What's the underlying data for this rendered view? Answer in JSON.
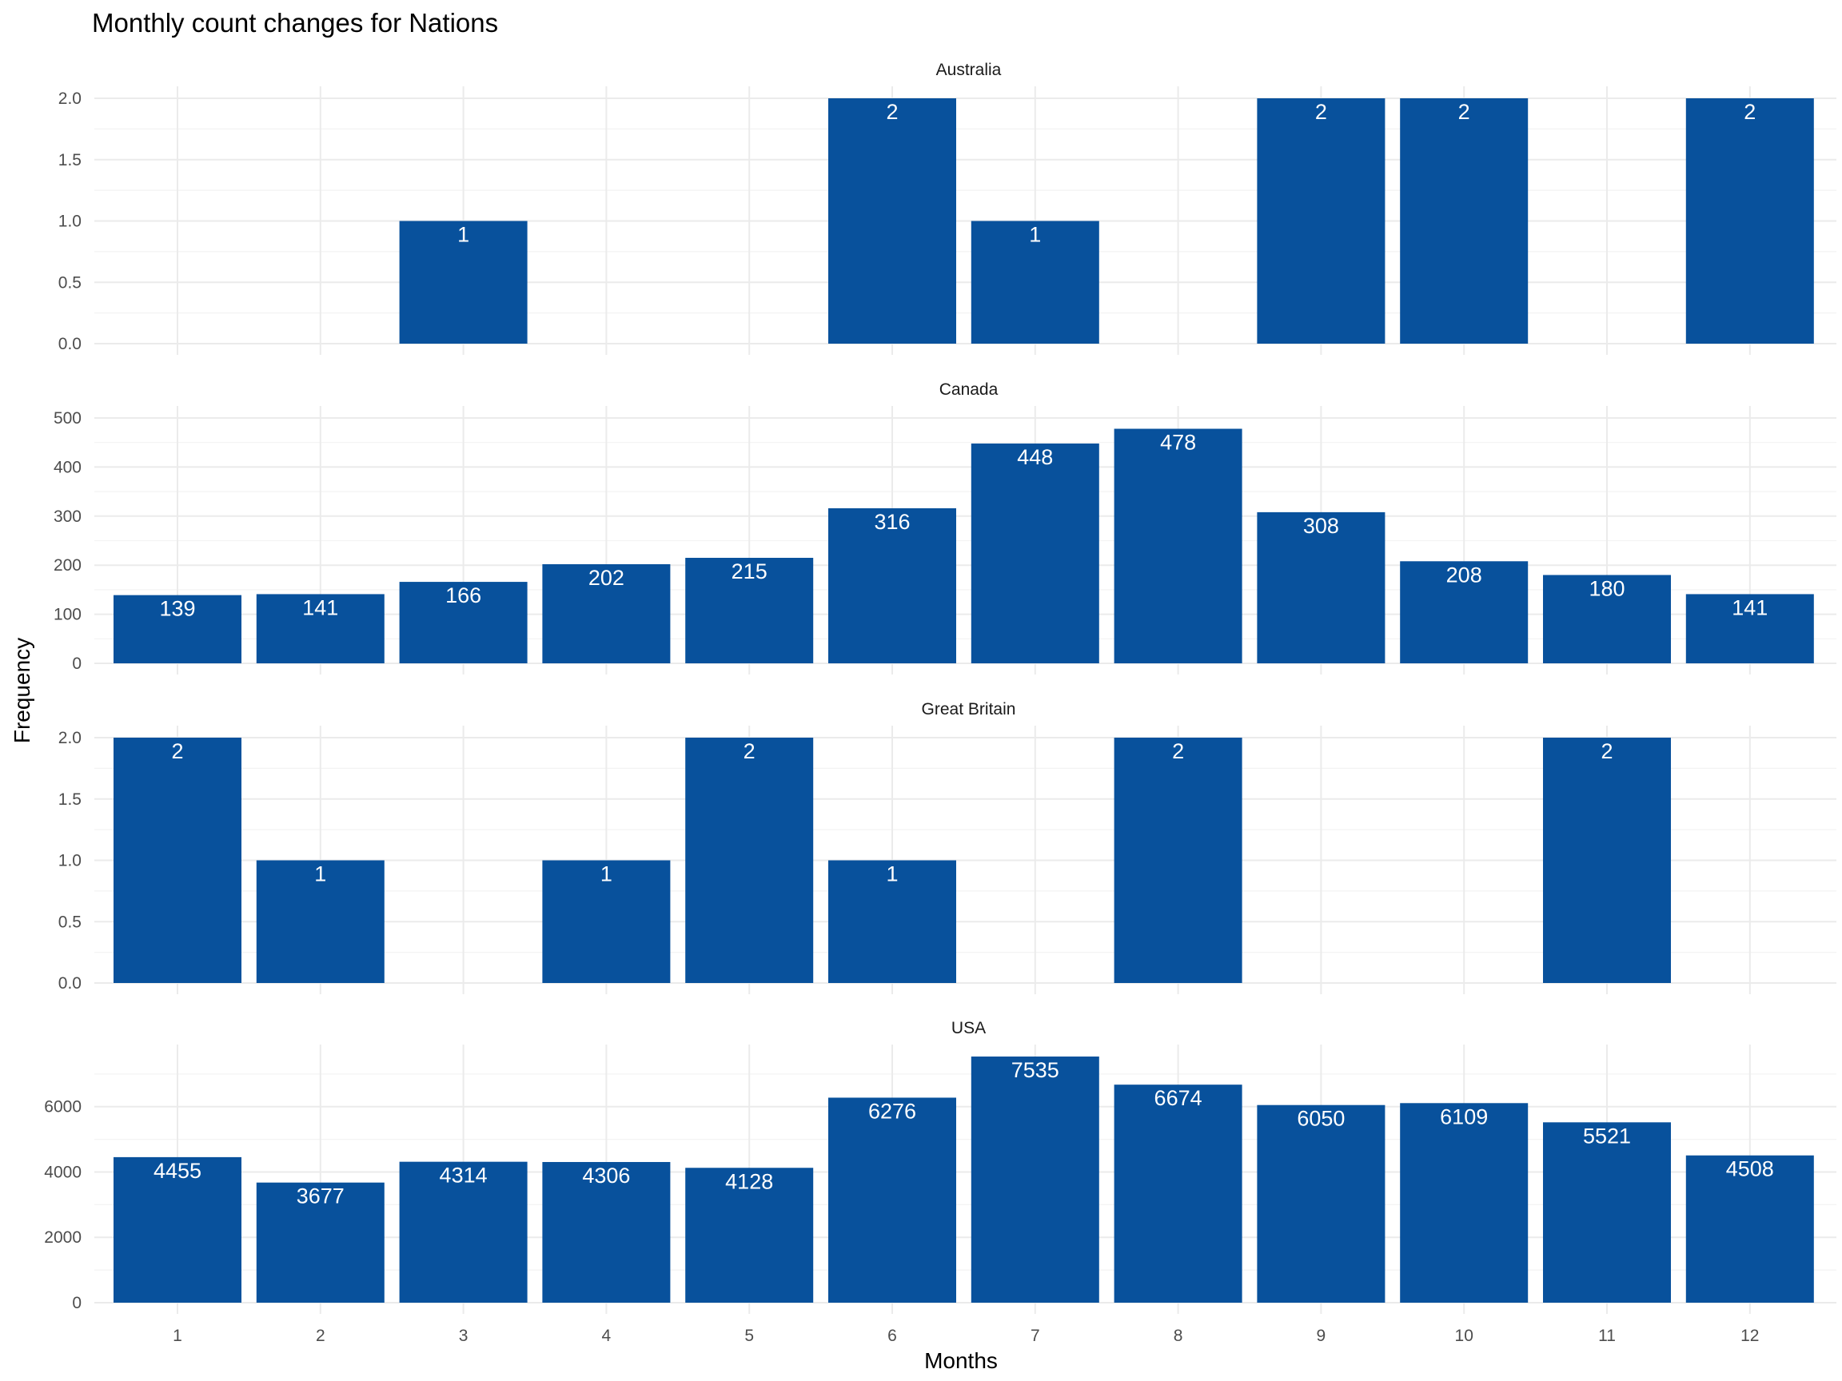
{
  "chart_data": {
    "type": "bar",
    "title": "Monthly count changes for Nations",
    "xlabel": "Months",
    "ylabel": "Frequency",
    "categories": [
      "1",
      "2",
      "3",
      "4",
      "5",
      "6",
      "7",
      "8",
      "9",
      "10",
      "11",
      "12"
    ],
    "bar_color": "#08519c",
    "label_color": "#ffffff",
    "grid": true,
    "facets": [
      {
        "name": "Australia",
        "values": [
          0,
          0,
          1,
          0,
          0,
          2,
          1,
          0,
          2,
          2,
          0,
          2
        ],
        "ylim": [
          0,
          2
        ],
        "yticks": [
          "0.0",
          "0.5",
          "1.0",
          "1.5",
          "2.0"
        ]
      },
      {
        "name": "Canada",
        "values": [
          139,
          141,
          166,
          202,
          215,
          316,
          448,
          478,
          308,
          208,
          180,
          141
        ],
        "ylim": [
          0,
          500
        ],
        "yticks": [
          "0",
          "100",
          "200",
          "300",
          "400",
          "500"
        ]
      },
      {
        "name": "Great Britain",
        "values": [
          2,
          1,
          0,
          1,
          2,
          1,
          0,
          2,
          0,
          0,
          2,
          0
        ],
        "ylim": [
          0,
          2
        ],
        "yticks": [
          "0.0",
          "0.5",
          "1.0",
          "1.5",
          "2.0"
        ]
      },
      {
        "name": "USA",
        "values": [
          4455,
          3677,
          4314,
          4306,
          4128,
          6276,
          7535,
          6674,
          6050,
          6109,
          5521,
          4508
        ],
        "ylim": [
          0,
          7535
        ],
        "yticks": [
          "0",
          "2000",
          "4000",
          "6000"
        ]
      }
    ]
  }
}
